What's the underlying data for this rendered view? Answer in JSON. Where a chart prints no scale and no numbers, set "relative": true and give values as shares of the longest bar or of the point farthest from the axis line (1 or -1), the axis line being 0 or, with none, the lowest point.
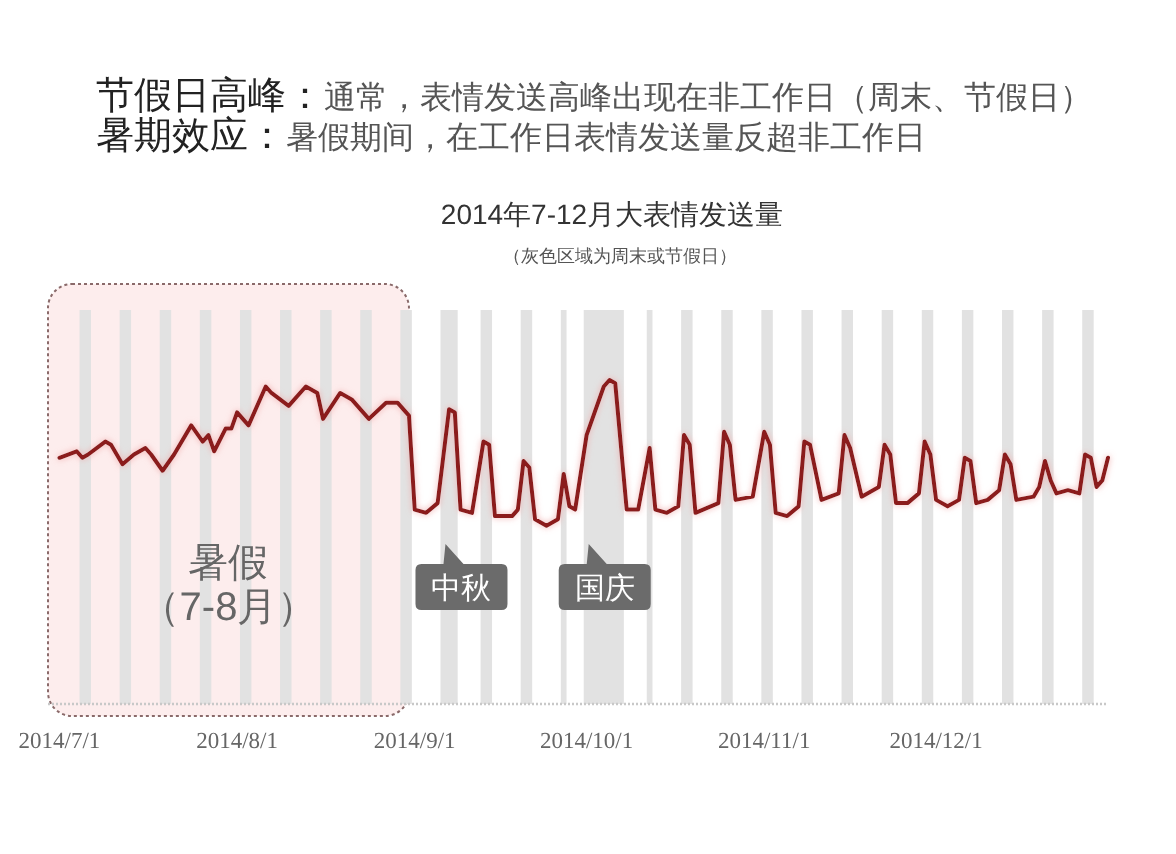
{
  "chart_data": {
    "type": "line",
    "title": "2014年7-12月大表情发送量",
    "subtitle": "（灰色区域为周末或节假日）",
    "relative": true,
    "xlim": [
      "2014-06-29",
      "2014-12-31"
    ],
    "xticks": [
      {
        "value": "2014-07-01",
        "label": "2014/7/1"
      },
      {
        "value": "2014-08-01",
        "label": "2014/8/1"
      },
      {
        "value": "2014-09-01",
        "label": "2014/9/1"
      },
      {
        "value": "2014-10-01",
        "label": "2014/10/1"
      },
      {
        "value": "2014-11-01",
        "label": "2014/11/1"
      },
      {
        "value": "2014-12-01",
        "label": "2014/12/1"
      }
    ],
    "x": [
      "2014-07-01",
      "2014-07-04",
      "2014-07-05",
      "2014-07-06",
      "2014-07-09",
      "2014-07-10",
      "2014-07-12",
      "2014-07-14",
      "2014-07-16",
      "2014-07-17",
      "2014-07-19",
      "2014-07-21",
      "2014-07-24",
      "2014-07-26",
      "2014-07-27",
      "2014-07-28",
      "2014-07-30",
      "2014-07-31",
      "2014-08-01",
      "2014-08-03",
      "2014-08-06",
      "2014-08-07",
      "2014-08-10",
      "2014-08-13",
      "2014-08-15",
      "2014-08-16",
      "2014-08-19",
      "2014-08-21",
      "2014-08-24",
      "2014-08-27",
      "2014-08-29",
      "2014-08-30",
      "2014-08-31",
      "2014-09-01",
      "2014-09-03",
      "2014-09-05",
      "2014-09-07",
      "2014-09-08",
      "2014-09-09",
      "2014-09-11",
      "2014-09-13",
      "2014-09-14",
      "2014-09-15",
      "2014-09-18",
      "2014-09-19",
      "2014-09-20",
      "2014-09-21",
      "2014-09-22",
      "2014-09-24",
      "2014-09-26",
      "2014-09-27",
      "2014-09-28",
      "2014-09-29",
      "2014-10-01",
      "2014-10-04",
      "2014-10-05",
      "2014-10-06",
      "2014-10-08",
      "2014-10-10",
      "2014-10-12",
      "2014-10-13",
      "2014-10-15",
      "2014-10-17",
      "2014-10-18",
      "2014-10-19",
      "2014-10-20",
      "2014-10-24",
      "2014-10-25",
      "2014-10-26",
      "2014-10-27",
      "2014-10-30",
      "2014-11-01",
      "2014-11-02",
      "2014-11-03",
      "2014-11-05",
      "2014-11-07",
      "2014-11-08",
      "2014-11-09",
      "2014-11-11",
      "2014-11-14",
      "2014-11-15",
      "2014-11-16",
      "2014-11-18",
      "2014-11-21",
      "2014-11-22",
      "2014-11-23",
      "2014-11-24",
      "2014-11-26",
      "2014-11-28",
      "2014-11-29",
      "2014-11-30",
      "2014-12-01",
      "2014-12-03",
      "2014-12-05",
      "2014-12-06",
      "2014-12-07",
      "2014-12-08",
      "2014-12-10",
      "2014-12-12",
      "2014-12-13",
      "2014-12-14",
      "2014-12-15",
      "2014-12-18",
      "2014-12-19",
      "2014-12-20",
      "2014-12-21",
      "2014-12-22",
      "2014-12-24",
      "2014-12-26",
      "2014-12-27",
      "2014-12-28",
      "2014-12-29",
      "2014-12-30",
      "2014-12-31"
    ],
    "series": [
      {
        "color": "#8b1a1a",
        "values": [
          0.76,
          0.78,
          0.76,
          0.77,
          0.81,
          0.8,
          0.74,
          0.77,
          0.79,
          0.77,
          0.72,
          0.77,
          0.86,
          0.81,
          0.83,
          0.78,
          0.85,
          0.85,
          0.9,
          0.86,
          0.98,
          0.96,
          0.92,
          0.98,
          0.96,
          0.88,
          0.96,
          0.94,
          0.88,
          0.93,
          0.93,
          0.91,
          0.89,
          0.6,
          0.59,
          0.62,
          0.91,
          0.9,
          0.6,
          0.59,
          0.81,
          0.8,
          0.58,
          0.58,
          0.6,
          0.75,
          0.73,
          0.57,
          0.55,
          0.57,
          0.71,
          0.61,
          0.6,
          0.83,
          0.98,
          1.0,
          0.99,
          0.6,
          0.6,
          0.79,
          0.6,
          0.59,
          0.61,
          0.83,
          0.8,
          0.59,
          0.62,
          0.84,
          0.8,
          0.63,
          0.64,
          0.84,
          0.8,
          0.59,
          0.58,
          0.61,
          0.81,
          0.8,
          0.63,
          0.65,
          0.83,
          0.79,
          0.64,
          0.67,
          0.8,
          0.77,
          0.62,
          0.62,
          0.65,
          0.81,
          0.77,
          0.63,
          0.61,
          0.63,
          0.76,
          0.75,
          0.62,
          0.63,
          0.66,
          0.77,
          0.74,
          0.63,
          0.64,
          0.67,
          0.75,
          0.69,
          0.65,
          0.66,
          0.65,
          0.77,
          0.76,
          0.67,
          0.69,
          0.76
        ]
      }
    ],
    "bands": [
      {
        "axis": "x",
        "from": "2014-06-29",
        "to": "2014-08-31",
        "label": "暑假（7-8月）",
        "color": "#fdeaea"
      },
      {
        "axis": "x",
        "from": "2014-07-04T12:00",
        "to": "2014-07-06T12:00",
        "color": "#e2e2e2"
      },
      {
        "axis": "x",
        "from": "2014-07-11T12:00",
        "to": "2014-07-13T12:00",
        "color": "#e2e2e2"
      },
      {
        "axis": "x",
        "from": "2014-07-18T12:00",
        "to": "2014-07-20T12:00",
        "color": "#e2e2e2"
      },
      {
        "axis": "x",
        "from": "2014-07-25T12:00",
        "to": "2014-07-27T12:00",
        "color": "#e2e2e2"
      },
      {
        "axis": "x",
        "from": "2014-08-01T12:00",
        "to": "2014-08-03T12:00",
        "color": "#e2e2e2"
      },
      {
        "axis": "x",
        "from": "2014-08-08T12:00",
        "to": "2014-08-10T12:00",
        "color": "#e2e2e2"
      },
      {
        "axis": "x",
        "from": "2014-08-15T12:00",
        "to": "2014-08-17T12:00",
        "color": "#e2e2e2"
      },
      {
        "axis": "x",
        "from": "2014-08-22T12:00",
        "to": "2014-08-24T12:00",
        "color": "#e2e2e2"
      },
      {
        "axis": "x",
        "from": "2014-08-29T12:00",
        "to": "2014-08-31T12:00",
        "color": "#e2e2e2"
      },
      {
        "axis": "x",
        "from": "2014-09-05T12:00",
        "to": "2014-09-08T12:00",
        "label": "中秋",
        "color": "#e2e2e2"
      },
      {
        "axis": "x",
        "from": "2014-09-12T12:00",
        "to": "2014-09-14T12:00",
        "color": "#e2e2e2"
      },
      {
        "axis": "x",
        "from": "2014-09-19T12:00",
        "to": "2014-09-21T12:00",
        "color": "#e2e2e2"
      },
      {
        "axis": "x",
        "from": "2014-09-26T12:00",
        "to": "2014-09-27T12:00",
        "color": "#e2e2e2"
      },
      {
        "axis": "x",
        "from": "2014-09-30T12:00",
        "to": "2014-10-07T12:00",
        "label": "国庆",
        "color": "#e2e2e2"
      },
      {
        "axis": "x",
        "from": "2014-10-11T12:00",
        "to": "2014-10-12T12:00",
        "color": "#e2e2e2"
      },
      {
        "axis": "x",
        "from": "2014-10-17T12:00",
        "to": "2014-10-19T12:00",
        "color": "#e2e2e2"
      },
      {
        "axis": "x",
        "from": "2014-10-24T12:00",
        "to": "2014-10-26T12:00",
        "color": "#e2e2e2"
      },
      {
        "axis": "x",
        "from": "2014-10-31T12:00",
        "to": "2014-11-02T12:00",
        "color": "#e2e2e2"
      },
      {
        "axis": "x",
        "from": "2014-11-07T12:00",
        "to": "2014-11-09T12:00",
        "color": "#e2e2e2"
      },
      {
        "axis": "x",
        "from": "2014-11-14T12:00",
        "to": "2014-11-16T12:00",
        "color": "#e2e2e2"
      },
      {
        "axis": "x",
        "from": "2014-11-21T12:00",
        "to": "2014-11-23T12:00",
        "color": "#e2e2e2"
      },
      {
        "axis": "x",
        "from": "2014-11-28T12:00",
        "to": "2014-11-30T12:00",
        "color": "#e2e2e2"
      },
      {
        "axis": "x",
        "from": "2014-12-05T12:00",
        "to": "2014-12-07T12:00",
        "color": "#e2e2e2"
      },
      {
        "axis": "x",
        "from": "2014-12-12T12:00",
        "to": "2014-12-14T12:00",
        "color": "#e2e2e2"
      },
      {
        "axis": "x",
        "from": "2014-12-19T12:00",
        "to": "2014-12-21T12:00",
        "color": "#e2e2e2"
      },
      {
        "axis": "x",
        "from": "2014-12-26T12:00",
        "to": "2014-12-28T12:00",
        "color": "#e2e2e2"
      }
    ],
    "annotations": [
      "节假日高峰：",
      "通常，表情发送高峰出现在非工作日（周末、节假日）",
      "暑期效应：",
      "暑假期间，在工作日表情发送量反超非工作日"
    ]
  }
}
